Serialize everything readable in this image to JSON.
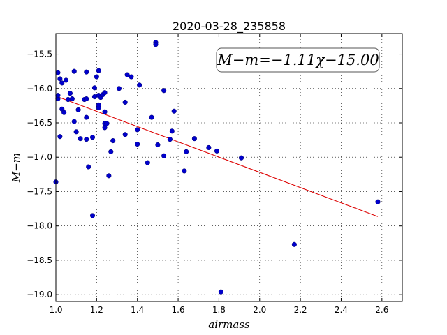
{
  "chart_data": {
    "type": "scatter",
    "title": "2020-03-28_235858",
    "xlabel": "airmass",
    "ylabel": "M−m",
    "xlim": [
      1.0,
      2.7
    ],
    "ylim": [
      -19.1,
      -15.2
    ],
    "xticks": [
      1.0,
      1.2,
      1.4,
      1.6,
      1.8,
      2.0,
      2.2,
      2.4,
      2.6
    ],
    "xtick_labels": [
      "1.0",
      "1.2",
      "1.4",
      "1.6",
      "1.8",
      "2.0",
      "2.2",
      "2.4",
      "2.6"
    ],
    "yticks": [
      -15.5,
      -16.0,
      -16.5,
      -17.0,
      -17.5,
      -18.0,
      -18.5,
      -19.0
    ],
    "ytick_labels": [
      "−15.5",
      "−16.0",
      "−16.5",
      "−17.0",
      "−17.5",
      "−18.0",
      "−18.5",
      "−19.0"
    ],
    "grid": true,
    "annotation": "M−m=−1.11χ−15.00",
    "point_color": "#0000cc",
    "fit_color": "#dd0000",
    "fit_line": {
      "slope": -1.11,
      "intercept": -15.0,
      "x_range": [
        1.0,
        2.58
      ]
    },
    "points": [
      [
        1.0,
        -17.36
      ],
      [
        1.01,
        -16.15
      ],
      [
        1.01,
        -16.1
      ],
      [
        1.01,
        -15.77
      ],
      [
        1.02,
        -15.86
      ],
      [
        1.02,
        -16.7
      ],
      [
        1.03,
        -15.92
      ],
      [
        1.03,
        -16.3
      ],
      [
        1.04,
        -16.35
      ],
      [
        1.05,
        -15.88
      ],
      [
        1.06,
        -16.16
      ],
      [
        1.07,
        -16.07
      ],
      [
        1.08,
        -16.15
      ],
      [
        1.09,
        -15.75
      ],
      [
        1.09,
        -16.48
      ],
      [
        1.1,
        -16.63
      ],
      [
        1.11,
        -16.31
      ],
      [
        1.12,
        -16.73
      ],
      [
        1.14,
        -16.16
      ],
      [
        1.15,
        -16.15
      ],
      [
        1.15,
        -15.76
      ],
      [
        1.15,
        -16.42
      ],
      [
        1.15,
        -16.74
      ],
      [
        1.16,
        -17.14
      ],
      [
        1.18,
        -16.71
      ],
      [
        1.18,
        -17.85
      ],
      [
        1.19,
        -15.99
      ],
      [
        1.19,
        -16.12
      ],
      [
        1.2,
        -15.83
      ],
      [
        1.21,
        -15.74
      ],
      [
        1.21,
        -16.1
      ],
      [
        1.21,
        -16.28
      ],
      [
        1.21,
        -16.24
      ],
      [
        1.22,
        -16.13
      ],
      [
        1.23,
        -16.09
      ],
      [
        1.24,
        -16.06
      ],
      [
        1.24,
        -16.34
      ],
      [
        1.24,
        -16.51
      ],
      [
        1.24,
        -16.57
      ],
      [
        1.25,
        -16.51
      ],
      [
        1.26,
        -17.27
      ],
      [
        1.27,
        -16.92
      ],
      [
        1.28,
        -16.76
      ],
      [
        1.31,
        -16.0
      ],
      [
        1.34,
        -16.2
      ],
      [
        1.34,
        -16.67
      ],
      [
        1.35,
        -15.8
      ],
      [
        1.37,
        -15.83
      ],
      [
        1.4,
        -16.6
      ],
      [
        1.4,
        -16.81
      ],
      [
        1.41,
        -15.95
      ],
      [
        1.45,
        -17.08
      ],
      [
        1.47,
        -16.42
      ],
      [
        1.49,
        -15.33
      ],
      [
        1.49,
        -15.36
      ],
      [
        1.5,
        -16.82
      ],
      [
        1.53,
        -16.03
      ],
      [
        1.53,
        -16.98
      ],
      [
        1.56,
        -16.74
      ],
      [
        1.57,
        -16.62
      ],
      [
        1.58,
        -16.33
      ],
      [
        1.63,
        -17.2
      ],
      [
        1.64,
        -16.92
      ],
      [
        1.68,
        -16.73
      ],
      [
        1.75,
        -16.86
      ],
      [
        1.79,
        -16.91
      ],
      [
        1.81,
        -18.96
      ],
      [
        1.91,
        -17.01
      ],
      [
        2.17,
        -18.27
      ],
      [
        2.58,
        -17.65
      ]
    ]
  }
}
